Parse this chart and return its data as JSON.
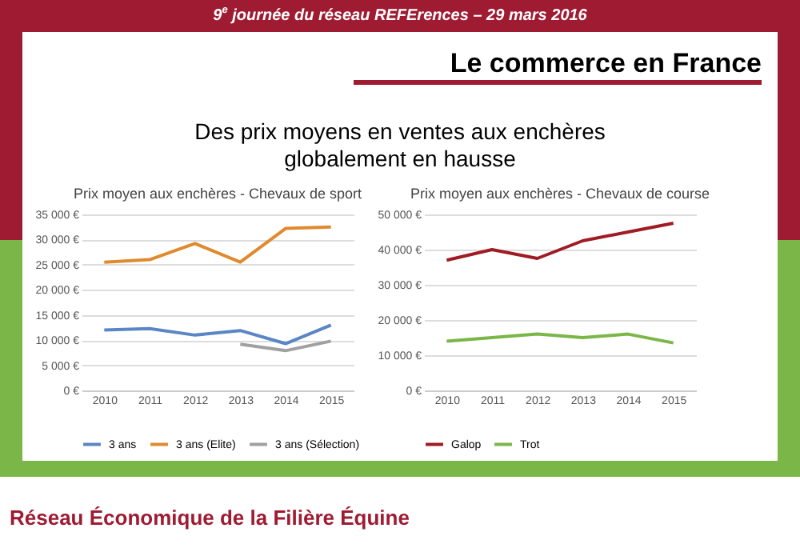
{
  "chart_data": [
    {
      "type": "line",
      "title": "Prix moyen aux enchères - Chevaux de sport",
      "annotations": [
        "9$^{e}$ journée du réseau REFErences – 29 mars 2016",
        "Le commerce en France",
        "Des prix moyens en ventes aux enchères globalement en hausse",
        "Réseau Économique de la Filière Équine"
      ],
      "categories": [
        "2010",
        "2011",
        "2012",
        "2013",
        "2014",
        "2015"
      ],
      "series": [
        {
          "name": "3 ans",
          "color": "#5b86c5",
          "values": [
            12000,
            12300,
            11000,
            11900,
            9300,
            13000
          ]
        },
        {
          "name": "3 ans (Elite)",
          "color": "#e08a2e",
          "values": [
            25500,
            26000,
            29200,
            25500,
            32200,
            32500
          ]
        },
        {
          "name": "3 ans (Sélection)",
          "color": "#a0a0a0",
          "values": [
            null,
            null,
            null,
            9200,
            7900,
            9800
          ]
        }
      ],
      "ylim": [
        0,
        35000
      ],
      "yticks": [
        {
          "value": 0,
          "label": "0 €"
        },
        {
          "value": 5000,
          "label": "5 000 €"
        },
        {
          "value": 10000,
          "label": "10 000 €"
        },
        {
          "value": 15000,
          "label": "15 000 €"
        },
        {
          "value": 20000,
          "label": "20 000 €"
        },
        {
          "value": 25000,
          "label": "25 000 €"
        },
        {
          "value": 30000,
          "label": "30 000 €"
        },
        {
          "value": 35000,
          "label": "35 000 €"
        }
      ],
      "grid": "y",
      "legend": "bottom"
    },
    {
      "type": "line",
      "title": "Prix moyen aux enchères - Chevaux de course",
      "categories": [
        "2010",
        "2011",
        "2012",
        "2013",
        "2014",
        "2015"
      ],
      "series": [
        {
          "name": "Galop",
          "color": "#a01c24",
          "values": [
            37000,
            40000,
            37500,
            42500,
            45000,
            47500
          ]
        },
        {
          "name": "Trot",
          "color": "#7ab648",
          "values": [
            14000,
            15000,
            16000,
            15000,
            16000,
            13500
          ]
        }
      ],
      "ylim": [
        0,
        50000
      ],
      "yticks": [
        {
          "value": 0,
          "label": "0 €"
        },
        {
          "value": 10000,
          "label": "10 000 €"
        },
        {
          "value": 20000,
          "label": "20 000 €"
        },
        {
          "value": 30000,
          "label": "30 000 €"
        },
        {
          "value": 40000,
          "label": "40 000 €"
        },
        {
          "value": 50000,
          "label": "50 000 €"
        }
      ],
      "grid": "y",
      "legend": "bottom"
    }
  ]
}
